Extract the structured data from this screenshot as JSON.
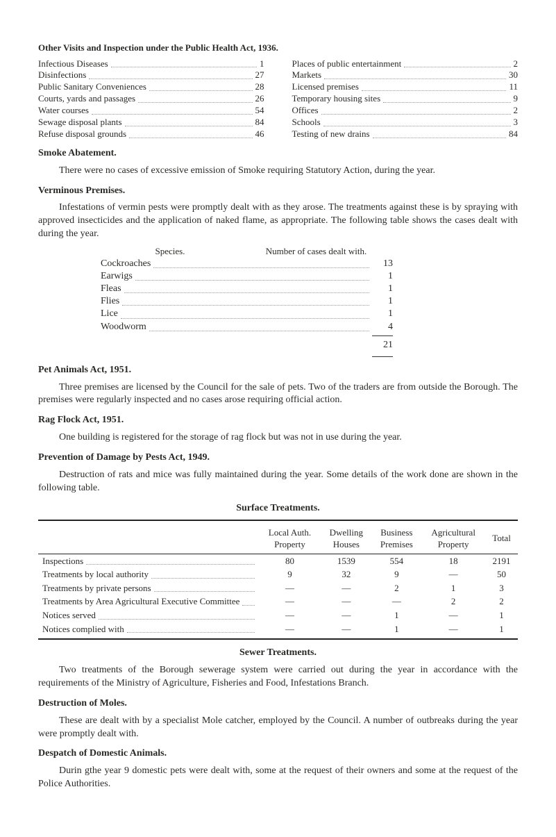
{
  "title": "Other Visits and Inspection under the Public Health Act, 1936.",
  "left_col": [
    {
      "label": "Infectious Diseases",
      "val": "1"
    },
    {
      "label": "Disinfections",
      "val": "27"
    },
    {
      "label": "Public Sanitary Conveniences",
      "val": "28"
    },
    {
      "label": "Courts, yards and passages",
      "val": "26"
    },
    {
      "label": "Water courses",
      "val": "54"
    },
    {
      "label": "Sewage disposal plants",
      "val": "84"
    },
    {
      "label": "Refuse disposal grounds",
      "val": "46"
    }
  ],
  "right_col": [
    {
      "label": "Places of public entertainment",
      "val": "2"
    },
    {
      "label": "Markets",
      "val": "30"
    },
    {
      "label": "Licensed premises",
      "val": "11"
    },
    {
      "label": "Temporary housing sites",
      "val": "9"
    },
    {
      "label": "Offices",
      "val": "2"
    },
    {
      "label": "Schools",
      "val": "3"
    },
    {
      "label": "Testing of new drains",
      "val": "84"
    }
  ],
  "smoke_head": "Smoke Abatement.",
  "smoke_para": "There were no cases of excessive emission of Smoke requiring Statutory Action, during the year.",
  "verm_head": "Verminous Premises.",
  "verm_para": "Infestations of vermin pests were promptly dealt with as they arose. The treatments against these is by spraying with approved insecticides and the application of naked flame, as appropriate. The following table shows the cases dealt with during the year.",
  "species_head_l": "Species.",
  "species_head_r": "Number of cases dealt with.",
  "species": [
    {
      "label": "Cockroaches",
      "val": "13"
    },
    {
      "label": "Earwigs",
      "val": "1"
    },
    {
      "label": "Fleas",
      "val": "1"
    },
    {
      "label": "Flies",
      "val": "1"
    },
    {
      "label": "Lice",
      "val": "1"
    },
    {
      "label": "Woodworm",
      "val": "4"
    }
  ],
  "species_total": "21",
  "pet_head": "Pet Animals Act, 1951.",
  "pet_para": "Three premises are licensed by the Council for the sale of pets. Two of the traders are from outside the Borough. The premises were regularly inspected and no cases arose requiring official action.",
  "rag_head": "Rag Flock Act, 1951.",
  "rag_para": "One building is registered for the storage of rag flock but was not in use during the year.",
  "prev_head": "Prevention of Damage by Pests Act, 1949.",
  "prev_para": "Destruction of rats and mice was fully maintained during the year. Some details of the work done are shown in the following table.",
  "surface_title": "Surface Treatments.",
  "surface_headers": [
    "",
    "Local Auth. Property",
    "Dwelling Houses",
    "Business Premises",
    "Agricultural Property",
    "Total"
  ],
  "surface_rows": [
    {
      "label": "Inspections",
      "c": [
        "80",
        "1539",
        "554",
        "18",
        "2191"
      ]
    },
    {
      "label": "Treatments by local authority",
      "c": [
        "9",
        "32",
        "9",
        "—",
        "50"
      ]
    },
    {
      "label": "Treatments by private persons",
      "c": [
        "—",
        "—",
        "2",
        "1",
        "3"
      ]
    },
    {
      "label": "Treatments by Area Agricultural Executive Committee",
      "c": [
        "—",
        "—",
        "—",
        "2",
        "2"
      ]
    },
    {
      "label": "Notices served",
      "c": [
        "—",
        "—",
        "1",
        "—",
        "1"
      ]
    },
    {
      "label": "Notices complied with",
      "c": [
        "—",
        "—",
        "1",
        "—",
        "1"
      ]
    }
  ],
  "sewer_title": "Sewer Treatments.",
  "sewer_para": "Two treatments of the Borough sewerage system were carried out during the year in accordance with the requirements of the Ministry of Agriculture, Fisheries and Food, Infestations Branch.",
  "moles_head": "Destruction of Moles.",
  "moles_para": "These are dealt with by a specialist Mole catcher, employed by the Council. A number of outbreaks during the year were promptly dealt with.",
  "despatch_head": "Despatch of Domestic Animals.",
  "despatch_para": "Durin gthe year 9 domestic pets were dealt with, some at the request of their owners and some at the request of the Police Authorities."
}
